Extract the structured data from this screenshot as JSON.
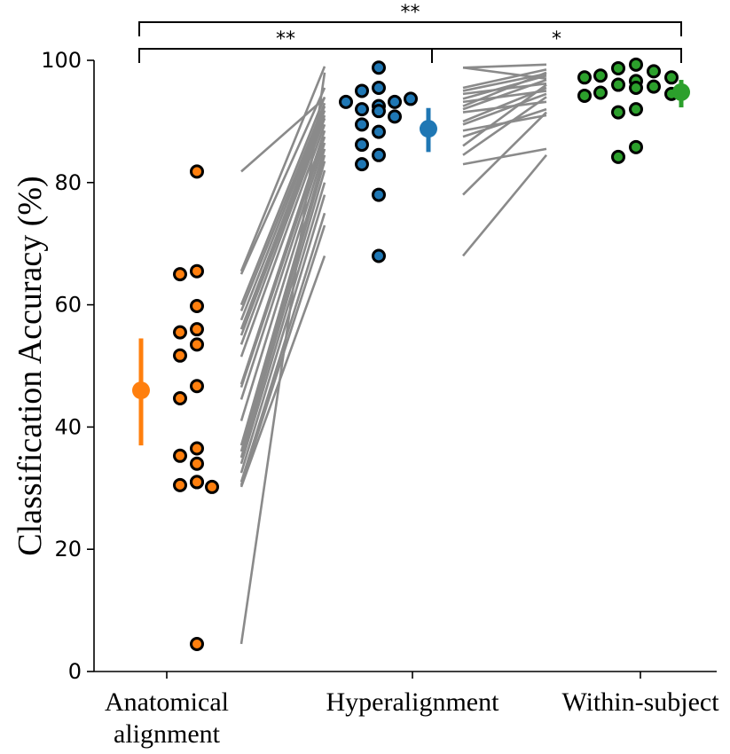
{
  "chart_data": {
    "type": "scatter",
    "title": "",
    "xlabel": "",
    "ylabel": "Classification Accuracy (%)",
    "ylim": [
      0,
      100
    ],
    "yticks": [
      "0",
      "20",
      "40",
      "60",
      "80",
      "100"
    ],
    "categories": [
      {
        "key": "anatomical",
        "label_lines": [
          "Anatomical",
          "alignment"
        ]
      },
      {
        "key": "hyper",
        "label_lines": [
          "Hyperalignment"
        ]
      },
      {
        "key": "within",
        "label_lines": [
          "Within-subject"
        ]
      }
    ],
    "series": [
      {
        "key": "anatomical",
        "color": "#ff7f0e",
        "values": [
          81.8,
          65.5,
          65.0,
          59.8,
          56.0,
          55.5,
          53.5,
          51.7,
          46.7,
          44.7,
          36.5,
          35.3,
          34.0,
          31.0,
          30.5,
          30.2,
          31.0,
          4.5
        ],
        "mean": 46.0,
        "ci": [
          37.0,
          54.5
        ]
      },
      {
        "key": "hyper",
        "color": "#1f77b4",
        "values": [
          98.8,
          95.5,
          95.0,
          93.2,
          93.2,
          93.7,
          92.5,
          92.0,
          91.7,
          90.8,
          89.5,
          88.3,
          86.2,
          84.5,
          83.0,
          78.0,
          68.0
        ],
        "mean": 88.8,
        "ci": [
          85.0,
          92.2
        ]
      },
      {
        "key": "within",
        "color": "#2ca02c",
        "values": [
          99.3,
          98.7,
          98.2,
          97.5,
          97.2,
          97.2,
          96.6,
          96.0,
          95.7,
          95.5,
          94.7,
          94.5,
          94.2,
          92.0,
          91.5,
          85.8,
          84.2
        ],
        "mean": 94.8,
        "ci": [
          92.3,
          96.8
        ]
      }
    ],
    "paired_lines": [
      {
        "from": "anatomical",
        "to": "hyper",
        "pairs": [
          [
            81.8,
            93.8
          ],
          [
            65.5,
            99.0
          ],
          [
            65.0,
            95.5
          ],
          [
            60.0,
            94.0
          ],
          [
            59.0,
            93.0
          ],
          [
            57.5,
            92.5
          ],
          [
            56.0,
            91.8
          ],
          [
            55.0,
            91.0
          ],
          [
            53.5,
            90.5
          ],
          [
            51.5,
            89.5
          ],
          [
            47.0,
            88.5
          ],
          [
            46.5,
            87.5
          ],
          [
            44.5,
            86.5
          ],
          [
            41.0,
            85.5
          ],
          [
            37.0,
            84.5
          ],
          [
            36.0,
            83.5
          ],
          [
            35.0,
            82.0
          ],
          [
            34.0,
            80.0
          ],
          [
            32.5,
            78.0
          ],
          [
            31.0,
            75.0
          ],
          [
            30.5,
            73.0
          ],
          [
            30.2,
            68.0
          ],
          [
            4.5,
            98.0
          ]
        ]
      },
      {
        "from": "hyper",
        "to": "within",
        "pairs": [
          [
            98.8,
            99.3
          ],
          [
            98.8,
            97.0
          ],
          [
            95.5,
            98.5
          ],
          [
            95.0,
            97.8
          ],
          [
            94.5,
            96.2
          ],
          [
            93.7,
            97.5
          ],
          [
            93.2,
            95.0
          ],
          [
            92.5,
            98.0
          ],
          [
            92.0,
            96.8
          ],
          [
            91.5,
            93.2
          ],
          [
            90.0,
            95.5
          ],
          [
            89.5,
            94.5
          ],
          [
            88.5,
            91.0
          ],
          [
            87.5,
            92.0
          ],
          [
            86.0,
            96.0
          ],
          [
            84.5,
            94.0
          ],
          [
            83.0,
            85.5
          ],
          [
            78.0,
            91.5
          ],
          [
            68.0,
            84.5
          ]
        ]
      }
    ],
    "significance": [
      {
        "from": "anatomical",
        "to": "within",
        "label": "**",
        "level": "top"
      },
      {
        "from": "anatomical",
        "to": "hyper",
        "label": "**",
        "level": "lower"
      },
      {
        "from": "hyper",
        "to": "within",
        "label": "*",
        "level": "lower"
      }
    ],
    "grid": false,
    "legend": "none"
  }
}
